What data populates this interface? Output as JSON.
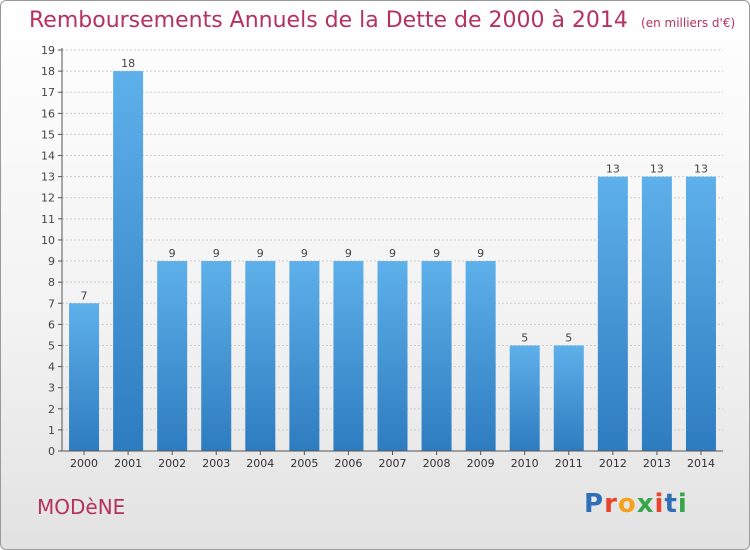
{
  "header": {
    "title": "Remboursements Annuels de la Dette de 2000 à 2014",
    "unit": "(en milliers d'€)"
  },
  "footer": {
    "town": "MODèNE",
    "brand": "Proxiti",
    "brand_colors": [
      "#2f6fb6",
      "#e8452c",
      "#f4a21b",
      "#36a84a",
      "#e8452c",
      "#2f6fb6",
      "#36a84a"
    ]
  },
  "colors": {
    "bar_top": "#5eb0ea",
    "bar_bottom": "#2e7cc0",
    "title": "#b5315f",
    "axis": "#555555",
    "grid": "#cccccc"
  },
  "chart_data": {
    "type": "bar",
    "title": "Remboursements Annuels de la Dette de 2000 à 2014",
    "subtitle": "(en milliers d'€)",
    "categories": [
      "2000",
      "2001",
      "2002",
      "2003",
      "2004",
      "2005",
      "2006",
      "2007",
      "2008",
      "2009",
      "2010",
      "2011",
      "2012",
      "2013",
      "2014"
    ],
    "values": [
      7,
      18,
      9,
      9,
      9,
      9,
      9,
      9,
      9,
      9,
      5,
      5,
      13,
      13,
      13
    ],
    "ylim": [
      0,
      19
    ],
    "yticks": [
      0,
      1,
      2,
      3,
      4,
      5,
      6,
      7,
      8,
      9,
      10,
      11,
      12,
      13,
      14,
      15,
      16,
      17,
      18,
      19
    ],
    "grid": true,
    "data_labels": true
  }
}
